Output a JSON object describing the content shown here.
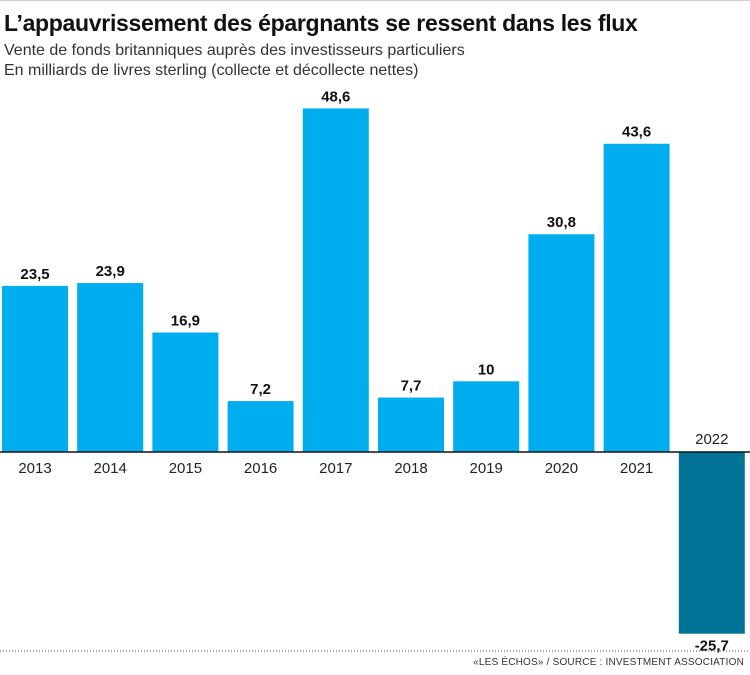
{
  "title": "L’appauvrissement des épargnants se ressent dans les flux",
  "subtitle_1": "Vente de fonds britanniques auprès des investisseurs particuliers",
  "subtitle_2": "En milliards de livres sterling (collecte et décollecte nettes)",
  "source": "«LES ÉCHOS» / SOURCE : INVESTMENT ASSOCIATION",
  "colors": {
    "positive_bar": "#00adef",
    "negative_bar": "#007396",
    "axis": "#111111",
    "dotted_rule": "#555555"
  },
  "chart_data": {
    "type": "bar",
    "categories": [
      "2013",
      "2014",
      "2015",
      "2016",
      "2017",
      "2018",
      "2019",
      "2020",
      "2021",
      "2022"
    ],
    "values": [
      23.5,
      23.9,
      16.9,
      7.2,
      48.6,
      7.7,
      10,
      30.8,
      43.6,
      -25.7
    ],
    "value_labels": [
      "23,5",
      "23,9",
      "16,9",
      "7,2",
      "48,6",
      "7,7",
      "10",
      "30,8",
      "43,6",
      "-25,7"
    ],
    "ylim": [
      -25.7,
      48.6
    ],
    "grid": false,
    "legend": "none"
  }
}
